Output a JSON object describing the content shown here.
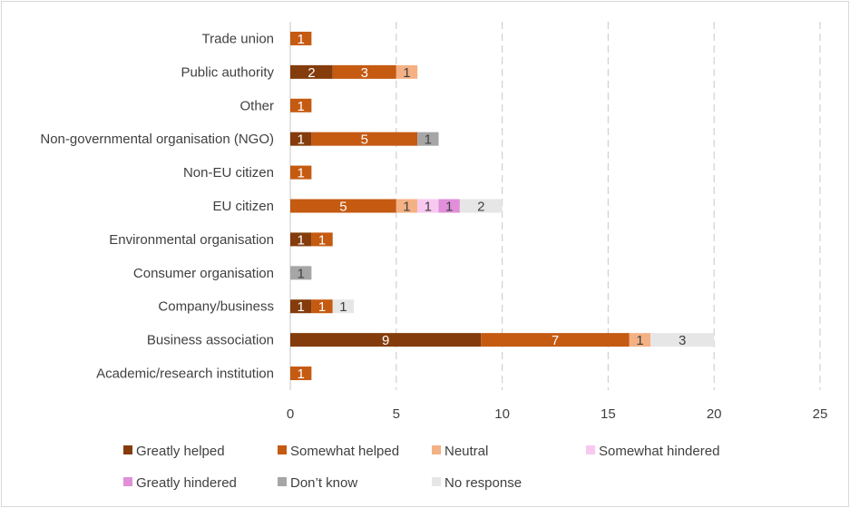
{
  "chart_data": {
    "type": "bar",
    "orientation": "horizontal",
    "stacked": true,
    "title": "",
    "xlabel": "",
    "ylabel": "",
    "xlim": [
      0,
      25
    ],
    "xticks": [
      0,
      5,
      10,
      15,
      20,
      25
    ],
    "grid": "vertical dashed",
    "legend_position": "bottom",
    "categories": [
      "Trade union",
      "Public authority",
      "Other",
      "Non-governmental organisation (NGO)",
      "Non-EU citizen",
      "EU citizen",
      "Environmental organisation",
      "Consumer organisation",
      "Company/business",
      "Business association",
      "Academic/research institution"
    ],
    "series": [
      {
        "name": "Greatly helped",
        "color": "#843c0c",
        "label_color": "#ffffff",
        "values": [
          0,
          2,
          0,
          1,
          0,
          0,
          1,
          0,
          1,
          9,
          0
        ]
      },
      {
        "name": "Somewhat helped",
        "color": "#c55a11",
        "label_color": "#ffffff",
        "values": [
          1,
          3,
          1,
          5,
          1,
          5,
          1,
          0,
          1,
          7,
          1
        ]
      },
      {
        "name": "Neutral",
        "color": "#f4b183",
        "label_color": "#404040",
        "values": [
          0,
          1,
          0,
          0,
          0,
          1,
          0,
          0,
          0,
          1,
          0
        ]
      },
      {
        "name": "Somewhat hindered",
        "color": "#f7c9f0",
        "label_color": "#404040",
        "values": [
          0,
          0,
          0,
          0,
          0,
          1,
          0,
          0,
          0,
          0,
          0
        ]
      },
      {
        "name": "Greatly hindered",
        "color": "#e08fd8",
        "label_color": "#404040",
        "values": [
          0,
          0,
          0,
          0,
          0,
          1,
          0,
          0,
          0,
          0,
          0
        ]
      },
      {
        "name": "Don’t know",
        "color": "#a6a6a6",
        "label_color": "#404040",
        "values": [
          0,
          0,
          0,
          1,
          0,
          0,
          0,
          1,
          0,
          0,
          0
        ]
      },
      {
        "name": "No response",
        "color": "#e7e6e6",
        "label_color": "#404040",
        "values": [
          0,
          0,
          0,
          0,
          0,
          2,
          0,
          0,
          1,
          3,
          0
        ]
      }
    ]
  }
}
